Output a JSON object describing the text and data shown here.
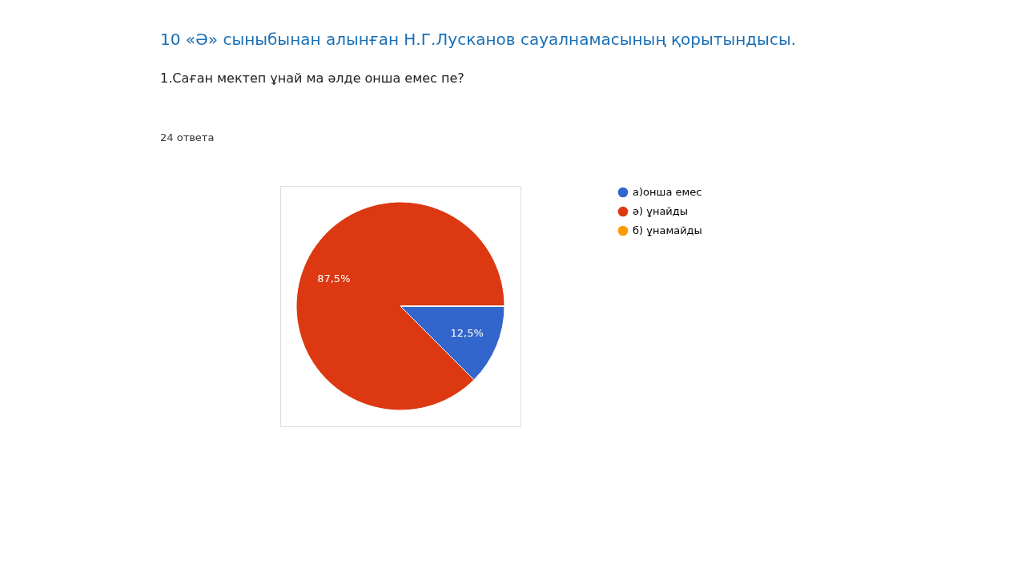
{
  "chart_data": {
    "type": "pie",
    "title": "10 «Ә» сыныбынан алынған Н.Г.Лусканов сауалнамасының қорытындысы.",
    "subtitle": "1.Саған мектеп ұнай ма әлде онша емес пе?",
    "annotations": [
      "24 ответа"
    ],
    "categories": [
      "а)онша емес",
      "ә) ұнайды",
      "б) ұнамайды"
    ],
    "values": [
      12.5,
      87.5,
      0
    ],
    "colors": [
      "#3366cc",
      "#dc3912",
      "#ff9900"
    ],
    "value_labels": [
      "12,5%",
      "87,5%",
      null
    ],
    "legend": "right"
  }
}
